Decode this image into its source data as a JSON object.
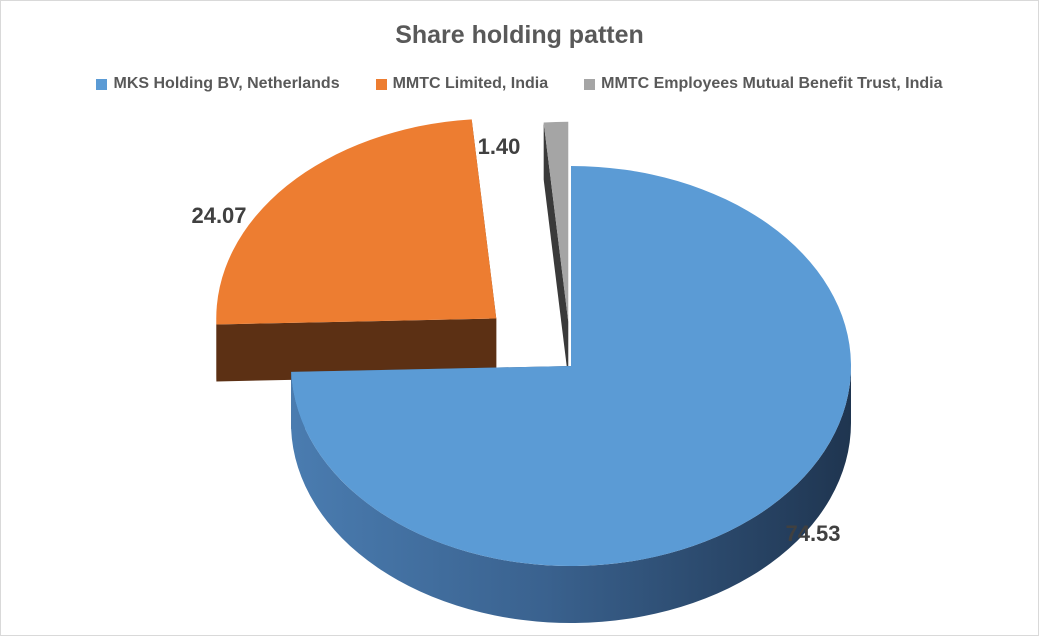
{
  "chart_data": {
    "type": "pie",
    "title": "Share holding patten",
    "style": "3d-exploded",
    "legend_position": "top",
    "categories": [
      "MKS Holding BV, Netherlands",
      "MMTC Limited, India",
      "MMTC Employees Mutual Benefit Trust, India"
    ],
    "values": [
      74.53,
      24.07,
      1.4
    ],
    "labels": [
      "74.53",
      "24.07",
      "1.40"
    ],
    "colors": [
      "#5B9BD5",
      "#ED7D31",
      "#A5A5A5"
    ],
    "side_colors": [
      "#2E4A6B",
      "#5C3014",
      "#3A3A3A"
    ]
  }
}
